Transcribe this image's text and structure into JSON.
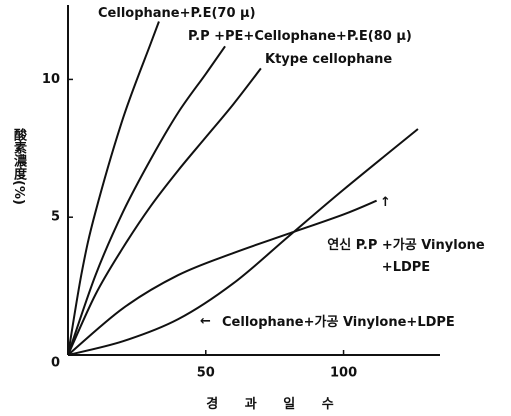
{
  "chart_data": {
    "type": "line",
    "x_label": "경 과 일 수",
    "y_label": "酸素濃度(%)",
    "xlim": [
      0,
      135
    ],
    "ylim": [
      0,
      12.7
    ],
    "xticks": [
      50,
      100
    ],
    "yticks": [
      0,
      5,
      10
    ],
    "series": [
      {
        "name": "Cellophane+P.E(70 μ)",
        "color": "#111111",
        "x": [
          0,
          5,
          10,
          20,
          30,
          33
        ],
        "values": [
          0,
          3.0,
          5.2,
          8.6,
          11.3,
          12.1
        ]
      },
      {
        "name": "P.P +PE+Cellophane+P.E(80 μ)",
        "color": "#111111",
        "x": [
          0,
          10,
          20,
          30,
          40,
          50,
          57
        ],
        "values": [
          0,
          2.9,
          5.2,
          7.1,
          8.8,
          10.2,
          11.2
        ]
      },
      {
        "name": "Ktype cellophane",
        "color": "#111111",
        "x": [
          0,
          10,
          20,
          30,
          40,
          50,
          60,
          70
        ],
        "values": [
          0,
          2.2,
          3.9,
          5.4,
          6.7,
          7.9,
          9.1,
          10.4
        ]
      },
      {
        "name": "연신 P.P +가공 Vinylone +LDPE",
        "color": "#111111",
        "x": [
          0,
          20,
          40,
          60,
          80,
          100,
          112
        ],
        "values": [
          0,
          1.7,
          2.9,
          3.7,
          4.4,
          5.1,
          5.6
        ]
      },
      {
        "name": "Cellophane+가공 Vinylone+LDPE",
        "color": "#111111",
        "x": [
          0,
          20,
          40,
          60,
          80,
          100,
          127
        ],
        "values": [
          0,
          0.5,
          1.3,
          2.6,
          4.3,
          6.0,
          8.2
        ]
      }
    ]
  }
}
